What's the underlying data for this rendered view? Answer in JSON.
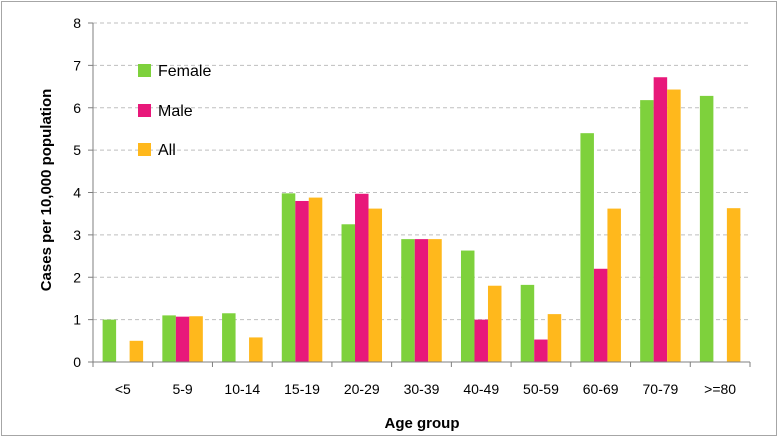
{
  "chart_data": {
    "type": "bar",
    "title": "",
    "xlabel": "Age group",
    "ylabel": "Cases per 10,000 population",
    "ylim": [
      0,
      8
    ],
    "yticks": [
      0,
      1,
      2,
      3,
      4,
      5,
      6,
      7,
      8
    ],
    "grid": true,
    "legend_position": "top-left",
    "categories": [
      "<5",
      "5-9",
      "10-14",
      "15-19",
      "20-29",
      "30-39",
      "40-49",
      "50-59",
      "60-69",
      "70-79",
      ">=80"
    ],
    "series": [
      {
        "name": "Female",
        "color": "#7ed13c",
        "values": [
          1.0,
          1.1,
          1.15,
          3.98,
          3.25,
          2.9,
          2.63,
          1.82,
          5.4,
          6.18,
          6.28
        ]
      },
      {
        "name": "Male",
        "color": "#e8187a",
        "values": [
          0,
          1.07,
          0,
          3.8,
          3.97,
          2.9,
          1.0,
          0.53,
          2.2,
          6.72,
          0
        ]
      },
      {
        "name": "All",
        "color": "#ffb81c",
        "values": [
          0.5,
          1.08,
          0.58,
          3.88,
          3.62,
          2.9,
          1.8,
          1.13,
          3.62,
          6.43,
          3.63
        ]
      }
    ]
  }
}
